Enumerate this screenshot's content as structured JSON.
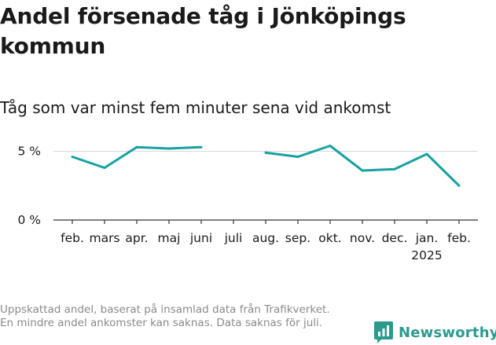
{
  "title": "Andel försenade tåg i Jönköpings kommun",
  "subtitle": "Tåg som var minst fem minuter sena vid ankomst",
  "note": "Uppskattad andel, baserat på insamlad data från Trafikverket. En mindre andel ankomster kan saknas. Data saknas för juli.",
  "brand": {
    "name": "Newsworthy",
    "icon": "bar-chart-logo-icon"
  },
  "colors": {
    "line": "#17a2a0",
    "grid": "#d9d9d9",
    "axis": "#333333",
    "brand": "#2b9a8e"
  },
  "chart_data": {
    "type": "line",
    "categories": [
      "feb.",
      "mars",
      "apr.",
      "maj",
      "juni",
      "juli",
      "aug.",
      "sep.",
      "okt.",
      "nov.",
      "dec.",
      "jan.",
      "feb."
    ],
    "year_labels": [
      "",
      "",
      "",
      "",
      "",
      "",
      "",
      "",
      "",
      "",
      "",
      "2025",
      ""
    ],
    "values": [
      4.6,
      3.8,
      5.3,
      5.2,
      5.3,
      null,
      4.9,
      4.6,
      5.4,
      3.6,
      3.7,
      4.8,
      2.5
    ],
    "ylim": [
      0,
      6
    ],
    "yticks": [
      0,
      5
    ],
    "ytick_labels": [
      "0 %",
      "5 %"
    ],
    "grid": true,
    "legend": "none"
  }
}
